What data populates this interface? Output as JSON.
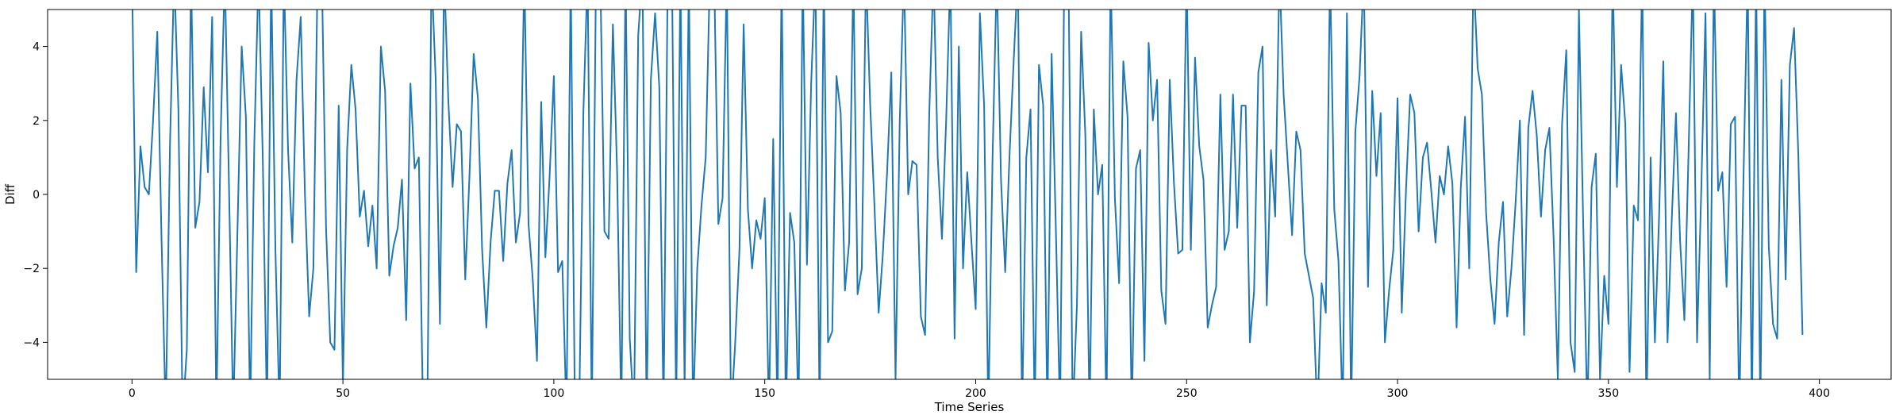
{
  "chart_data": {
    "type": "line",
    "title": "",
    "xlabel": "Time Series",
    "ylabel": "Diff",
    "xlim": [
      -20,
      417
    ],
    "ylim": [
      -5,
      5
    ],
    "grid": false,
    "legend": "none",
    "line_color": "#1f77b4",
    "x_ticks": [
      0,
      50,
      100,
      150,
      200,
      250,
      300,
      350,
      400
    ],
    "y_ticks": [
      -4,
      -2,
      0,
      2,
      4
    ],
    "x_tick_labels": [
      "0",
      "50",
      "100",
      "150",
      "200",
      "250",
      "300",
      "350",
      "400"
    ],
    "y_tick_labels": [
      "−4",
      "−2",
      "0",
      "2",
      "4"
    ],
    "x_start": 0,
    "values": [
      6.0,
      -2.1,
      1.3,
      0.2,
      0.0,
      2.0,
      4.4,
      -1.2,
      -6.0,
      1.3,
      6.0,
      2.3,
      -6.0,
      -4.2,
      6.0,
      -0.9,
      -0.2,
      2.9,
      0.6,
      4.8,
      -6.0,
      1.5,
      6.0,
      0.2,
      -6.0,
      -1.0,
      4.0,
      2.1,
      -6.0,
      1.4,
      6.0,
      1.0,
      -6.0,
      6.0,
      -1.5,
      -6.0,
      6.0,
      1.2,
      -1.3,
      3.1,
      4.8,
      0.0,
      -3.3,
      -2.0,
      6.0,
      6.0,
      -0.9,
      -4.0,
      -4.2,
      2.4,
      -5.2,
      1.2,
      3.5,
      2.3,
      -0.6,
      0.1,
      -1.4,
      -0.3,
      -2.0,
      4.0,
      2.8,
      -2.2,
      -1.4,
      -0.9,
      0.4,
      -3.4,
      3.0,
      0.7,
      1.0,
      -6.0,
      -6.0,
      6.0,
      3.1,
      -3.5,
      6.0,
      2.5,
      0.2,
      1.9,
      1.7,
      -2.3,
      0.5,
      3.8,
      2.6,
      -1.5,
      -3.6,
      -1.3,
      0.1,
      0.1,
      -1.8,
      0.3,
      1.2,
      -1.3,
      -0.5,
      6.0,
      -0.8,
      -2.3,
      -4.5,
      2.5,
      -1.7,
      0.5,
      3.2,
      -2.1,
      -1.8,
      -6.0,
      6.0,
      -6.0,
      -6.0,
      2.2,
      6.0,
      -6.0,
      6.0,
      6.0,
      -1.0,
      -1.2,
      4.6,
      0.6,
      -6.0,
      6.0,
      -3.9,
      -6.0,
      4.3,
      6.0,
      -6.0,
      3.1,
      4.9,
      2.9,
      -6.0,
      6.0,
      6.0,
      -5.9,
      6.0,
      -5.3,
      6.0,
      -6.0,
      -2.0,
      -0.3,
      1.0,
      6.0,
      6.0,
      -0.8,
      -0.1,
      6.0,
      -6.0,
      -4.0,
      -1.5,
      4.6,
      -0.4,
      -2.0,
      -0.7,
      -1.2,
      -0.1,
      -6.0,
      1.5,
      -6.0,
      6.0,
      -6.0,
      -0.5,
      -1.3,
      -6.0,
      6.0,
      -1.9,
      3.0,
      6.0,
      -6.0,
      6.0,
      -4.0,
      -3.7,
      3.2,
      2.2,
      -2.6,
      -1.3,
      6.0,
      -2.7,
      -2.0,
      6.0,
      2.4,
      -0.3,
      -3.2,
      -1.6,
      0.6,
      3.3,
      -5.0,
      2.0,
      6.0,
      0.0,
      0.9,
      0.8,
      -3.3,
      -3.8,
      2.2,
      6.0,
      1.0,
      -1.2,
      2.0,
      6.0,
      -3.9,
      4.0,
      -2.0,
      0.6,
      -1.3,
      -3.1,
      4.9,
      2.4,
      -6.0,
      1.0,
      6.0,
      0.4,
      -2.1,
      1.0,
      3.6,
      6.0,
      -6.0,
      1.0,
      2.3,
      -6.0,
      3.5,
      2.4,
      -6.0,
      3.8,
      -0.9,
      -6.0,
      6.0,
      6.0,
      -6.0,
      -3.0,
      4.4,
      1.6,
      -6.0,
      2.3,
      0.0,
      0.8,
      -6.0,
      6.0,
      -0.1,
      -2.4,
      3.6,
      2.1,
      -6.0,
      0.7,
      1.2,
      -4.5,
      4.1,
      2.0,
      3.1,
      -2.6,
      -3.5,
      3.1,
      0.3,
      -1.6,
      -1.5,
      6.0,
      -1.5,
      3.7,
      1.3,
      0.4,
      -3.6,
      -3.0,
      -2.5,
      2.7,
      -1.5,
      -1.0,
      2.7,
      -0.9,
      2.4,
      2.4,
      -4.0,
      -2.6,
      3.3,
      4.0,
      -3.0,
      1.2,
      -0.6,
      6.0,
      2.7,
      0.8,
      -1.1,
      1.7,
      1.2,
      -1.6,
      -2.2,
      -2.8,
      -6.0,
      -2.4,
      -3.2,
      6.0,
      -0.4,
      -1.8,
      -6.0,
      4.9,
      -6.0,
      1.7,
      3.2,
      6.0,
      -2.5,
      2.8,
      0.5,
      2.2,
      -4.0,
      -2.6,
      -1.5,
      2.6,
      -3.2,
      0.1,
      2.7,
      2.2,
      -1.0,
      1.0,
      1.4,
      0.1,
      -1.3,
      0.5,
      0.0,
      1.3,
      0.3,
      -3.6,
      0.2,
      2.1,
      -2.0,
      6.0,
      3.4,
      2.7,
      -0.5,
      -2.3,
      -3.5,
      -1.3,
      -0.2,
      -3.3,
      -2.0,
      -0.2,
      2.0,
      -3.8,
      1.8,
      2.8,
      1.6,
      -0.6,
      1.2,
      1.8,
      -1.2,
      -5.0,
      1.9,
      3.9,
      -4.0,
      -4.8,
      5.0,
      -0.7,
      -6.0,
      0.2,
      1.1,
      -5.0,
      -2.2,
      -3.5,
      6.0,
      0.2,
      3.5,
      1.9,
      -4.8,
      -0.3,
      -0.7,
      6.0,
      -6.0,
      1.0,
      -4.0,
      -0.6,
      3.6,
      -4.0,
      -0.7,
      2.2,
      -1.3,
      -3.4,
      1.2,
      6.0,
      -4.0,
      0.1,
      4.9,
      -5.0,
      6.0,
      0.1,
      0.6,
      -2.5,
      1.9,
      2.1,
      -6.0,
      0.4,
      6.0,
      -6.0,
      6.0,
      -6.0,
      6.0,
      -1.4,
      -3.5,
      -3.9,
      3.1,
      -2.3,
      3.5,
      4.5,
      1.1,
      -3.8
    ]
  }
}
